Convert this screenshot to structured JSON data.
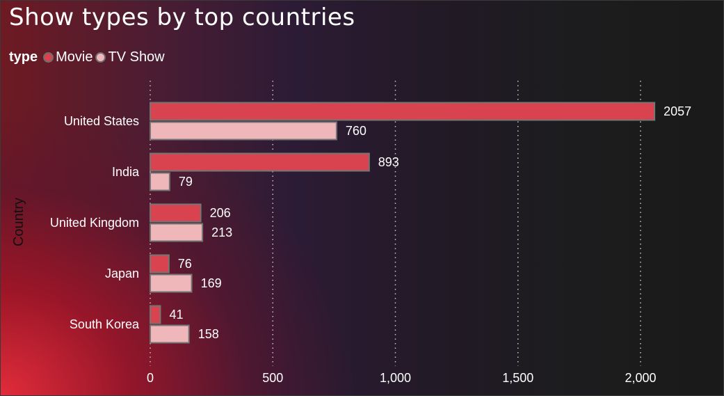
{
  "title": "Show types by top countries",
  "legend": {
    "title": "type",
    "items": [
      {
        "label": "Movie",
        "color": "#d9434f"
      },
      {
        "label": "TV Show",
        "color": "#f0b7bb"
      }
    ]
  },
  "chart_data": {
    "type": "bar",
    "orientation": "horizontal",
    "title": "Show types by top countries",
    "ylabel": "Country",
    "xlabel": "",
    "categories": [
      "United States",
      "India",
      "United Kingdom",
      "Japan",
      "South Korea"
    ],
    "series": [
      {
        "name": "Movie",
        "color": "#d9434f",
        "values": [
          2057,
          893,
          206,
          76,
          41
        ]
      },
      {
        "name": "TV Show",
        "color": "#f0b7bb",
        "values": [
          760,
          79,
          213,
          169,
          158
        ]
      }
    ],
    "xlim": [
      0,
      2000
    ],
    "xticks": [
      0,
      500,
      1000,
      1500,
      2000
    ],
    "xtick_labels": [
      "0",
      "500",
      "1,000",
      "1,500",
      "2,000"
    ],
    "grid": true,
    "legend_position": "top-left",
    "data_labels": true
  }
}
